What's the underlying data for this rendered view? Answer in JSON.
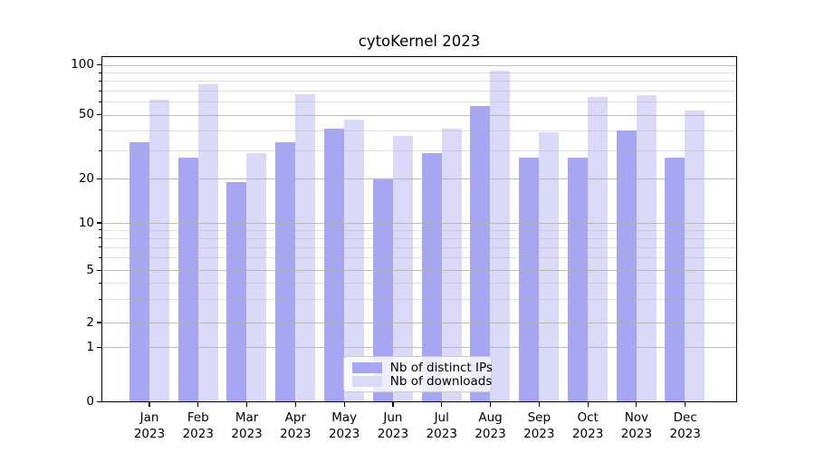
{
  "title": "cytoKernel 2023",
  "legend": {
    "items": [
      {
        "label": "Nb of distinct IPs",
        "color": "#a6a6f3"
      },
      {
        "label": "Nb of downloads",
        "color": "#dadaf8"
      }
    ],
    "position": "lower center"
  },
  "chart_data": {
    "type": "bar",
    "title": "cytoKernel 2023",
    "categories": [
      "Jan 2023",
      "Feb 2023",
      "Mar 2023",
      "Apr 2023",
      "May 2023",
      "Jun 2023",
      "Jul 2023",
      "Aug 2023",
      "Sep 2023",
      "Oct 2023",
      "Nov 2023",
      "Dec 2023"
    ],
    "series": [
      {
        "name": "Nb of distinct IPs",
        "color": "#a6a6f3",
        "values": [
          34,
          27,
          19,
          34,
          41,
          20,
          29,
          57,
          27,
          27,
          40,
          27
        ]
      },
      {
        "name": "Nb of downloads",
        "color": "#dadaf8",
        "values": [
          62,
          77,
          29,
          67,
          47,
          37,
          41,
          93,
          39,
          64,
          66,
          53
        ]
      }
    ],
    "yscale": "symlog",
    "yticks": [
      0,
      1,
      2,
      5,
      10,
      20,
      50,
      100
    ],
    "yticks_minor": [
      3,
      4,
      6,
      7,
      8,
      9,
      30,
      40,
      60,
      70,
      80,
      90
    ],
    "ylim": [
      0,
      112
    ],
    "xlabel": "",
    "ylabel": "",
    "grid": "both",
    "grid_above_bars": true,
    "legend_position": "lower center"
  },
  "colors": {
    "background": "#ffffff",
    "axis": "#000000",
    "grid_major": "#b0b0b0",
    "grid_minor": "#d9d9d9",
    "legend_border": "#cccccc"
  }
}
